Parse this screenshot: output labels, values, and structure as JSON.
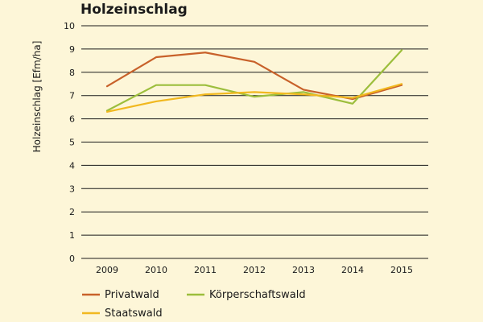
{
  "chart_data": {
    "type": "line",
    "title": "Holzeinschlag",
    "xlabel": "",
    "ylabel": "Holzeinschlag [Efm/ha]",
    "x": [
      "2009",
      "2010",
      "2011",
      "2012",
      "2013",
      "2014",
      "2015"
    ],
    "ylim": [
      0,
      10
    ],
    "yticks": [
      "0",
      "1",
      "2",
      "3",
      "4",
      "5",
      "6",
      "7",
      "8",
      "9",
      "10"
    ],
    "grid": "horizontal",
    "legend_position": "bottom-left",
    "series": [
      {
        "name": "Privatwald",
        "color": "#c8612a",
        "values": [
          7.4,
          8.65,
          8.85,
          8.45,
          7.25,
          6.85,
          7.45
        ]
      },
      {
        "name": "Körperschaftswald",
        "color": "#9cbe3c",
        "values": [
          6.35,
          7.45,
          7.45,
          6.95,
          7.15,
          6.65,
          8.95
        ]
      },
      {
        "name": "Staatswald",
        "color": "#f1b81f",
        "values": [
          6.3,
          6.75,
          7.05,
          7.15,
          7.05,
          6.9,
          7.5
        ]
      }
    ]
  }
}
